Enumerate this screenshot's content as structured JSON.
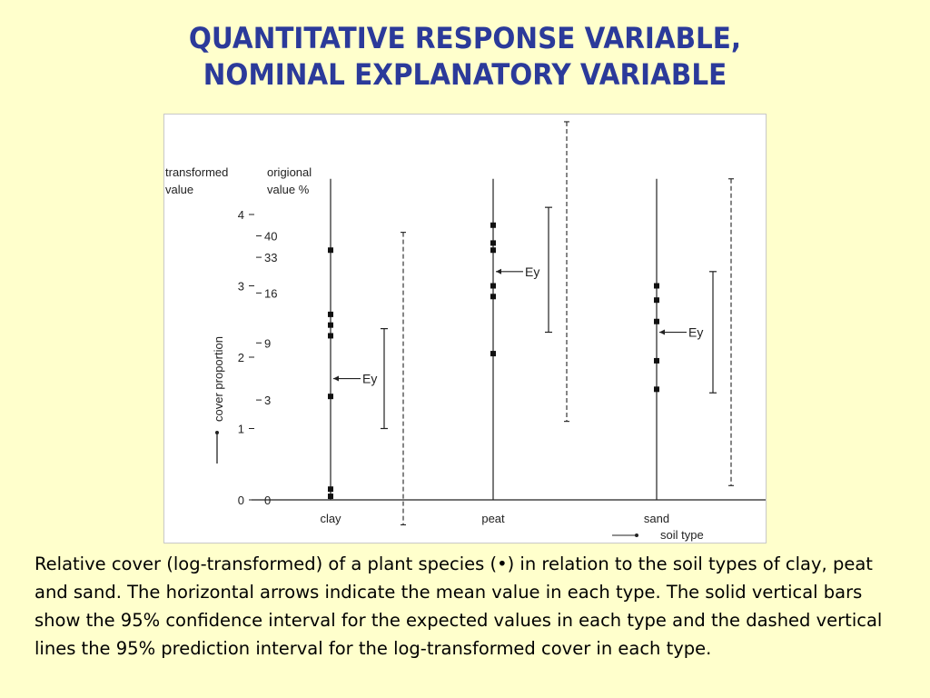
{
  "title": {
    "line1": "QUANTITATIVE RESPONSE VARIABLE,",
    "line2": "NOMINAL EXPLANATORY VARIABLE"
  },
  "caption": "Relative cover (log-transformed) of a plant species (•) in relation to the soil types of clay, peat and sand. The horizontal arrows indicate the mean value in each type. The solid vertical bars show the 95% confidence interval for the expected values in each type and the dashed vertical lines the 95% prediction interval for the log-transformed cover in each type.",
  "chart_data": {
    "type": "scatter",
    "y_axis_left_label": [
      "transformed",
      "value"
    ],
    "y_axis_right_label": [
      "origional",
      "value %"
    ],
    "y_axis_side_label": "cover proportion",
    "x_axis_label": "soil type",
    "y_ticks": [
      0,
      1,
      2,
      3,
      4
    ],
    "y_original_ticks": [
      {
        "label": "0",
        "y": 0
      },
      {
        "label": "3",
        "y": 1.4
      },
      {
        "label": "9",
        "y": 2.2
      },
      {
        "label": "16",
        "y": 2.9
      },
      {
        "label": "33",
        "y": 3.4
      },
      {
        "label": "40",
        "y": 3.7
      }
    ],
    "ylim": [
      0,
      4.5
    ],
    "mean_label": "Ey",
    "groups": [
      {
        "category": "clay",
        "points": [
          3.5,
          2.6,
          2.45,
          2.3,
          1.45,
          0.15,
          0.05
        ],
        "mean": 1.7,
        "ci": [
          1.0,
          2.4
        ],
        "pi": [
          -0.35,
          3.75
        ]
      },
      {
        "category": "peat",
        "points": [
          3.85,
          3.6,
          3.5,
          3.0,
          2.85,
          2.05
        ],
        "mean": 3.2,
        "ci": [
          2.35,
          4.1
        ],
        "pi": [
          1.1,
          5.3
        ]
      },
      {
        "category": "sand",
        "points": [
          3.0,
          2.8,
          2.5,
          1.95,
          1.55
        ],
        "mean": 2.35,
        "ci": [
          1.5,
          3.2
        ],
        "pi": [
          0.2,
          4.5
        ]
      }
    ]
  }
}
